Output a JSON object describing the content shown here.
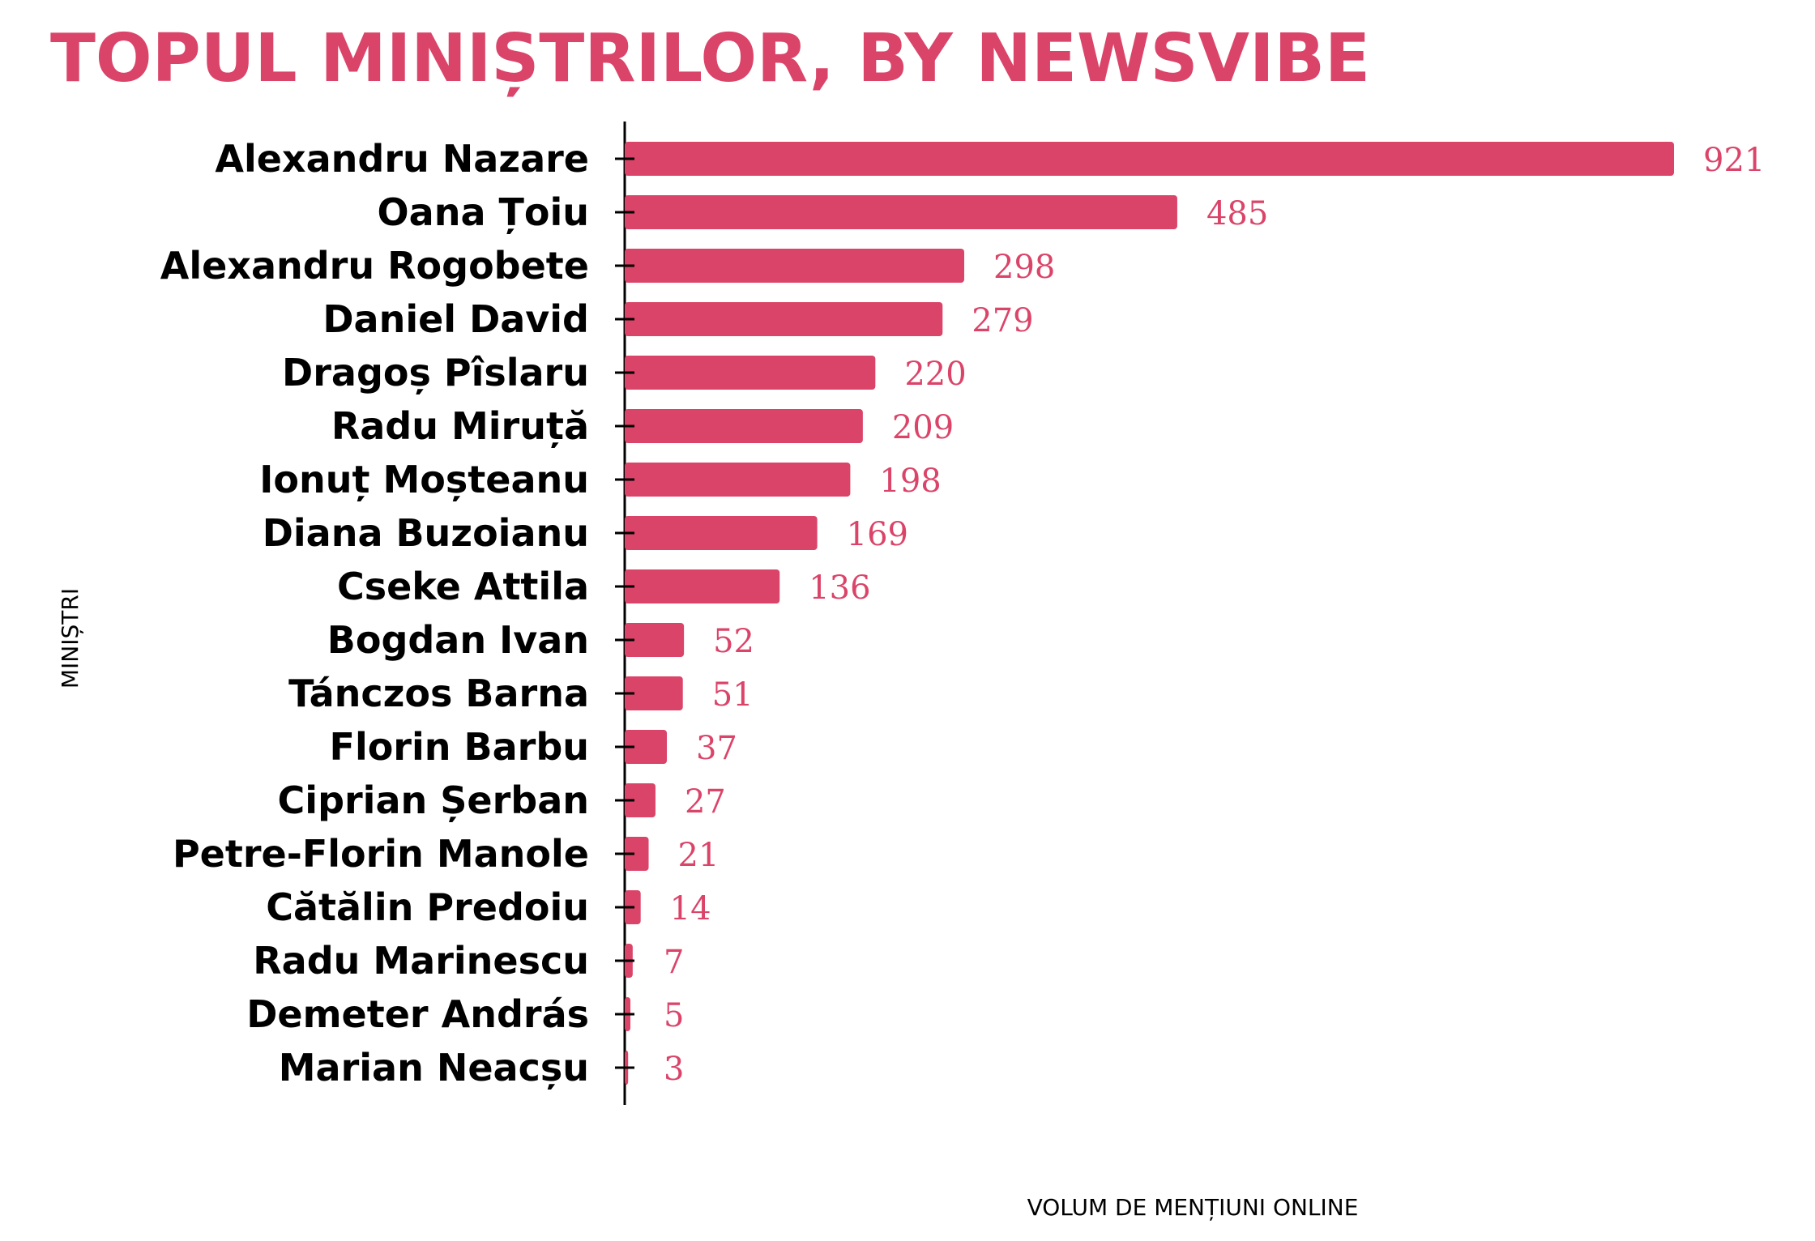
{
  "chart_data": {
    "type": "bar",
    "orientation": "horizontal",
    "title": "TOPUL MINIȘTRILOR, BY NEWSVIBE",
    "xlabel": "VOLUM DE MENȚIUNI ONLINE",
    "ylabel": "MINIȘTRI",
    "categories": [
      "Alexandru Nazare",
      "Oana Țoiu",
      "Alexandru Rogobete",
      "Daniel David",
      "Dragoș Pîslaru",
      "Radu Miruță",
      "Ionuț Moșteanu",
      "Diana Buzoianu",
      "Cseke Attila",
      "Bogdan Ivan",
      "Tánczos Barna",
      "Florin Barbu",
      "Ciprian Șerban",
      "Petre-Florin Manole",
      "Cătălin Predoiu",
      "Radu Marinescu",
      "Demeter András",
      "Marian Neacșu"
    ],
    "values": [
      921,
      485,
      298,
      279,
      220,
      209,
      198,
      169,
      136,
      52,
      51,
      37,
      27,
      21,
      14,
      7,
      5,
      3
    ],
    "xlim": [
      0,
      921
    ],
    "grid": false,
    "legend": "none",
    "colors": {
      "bar": "#db4469",
      "title": "#db4469",
      "value_label": "#db4469",
      "axis": "#000000"
    }
  }
}
